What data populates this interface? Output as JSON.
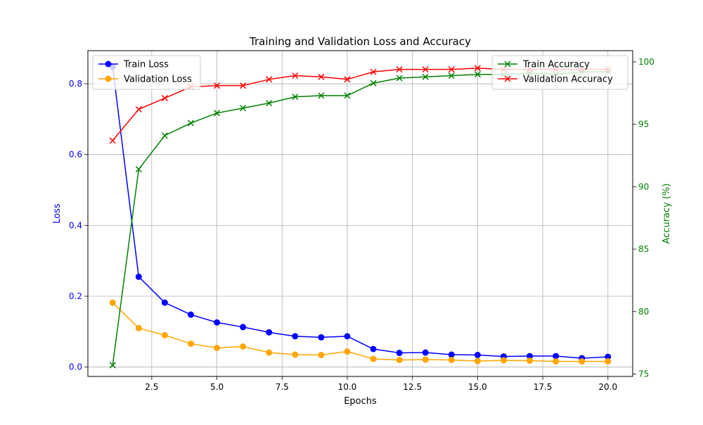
{
  "chart_data": {
    "type": "line",
    "title": "Training and Validation Loss and Accuracy",
    "xlabel": "Epochs",
    "ylabel_left": "Loss",
    "ylabel_right": "Accuracy (%)",
    "xlim": [
      0.05,
      20.95
    ],
    "ylim_left": [
      -0.0265,
      0.8935
    ],
    "ylim_right": [
      74.8,
      100.9
    ],
    "x_ticks": [
      2.5,
      5.0,
      7.5,
      10.0,
      12.5,
      15.0,
      17.5,
      20.0
    ],
    "x_tick_labels": [
      "2.5",
      "5.0",
      "7.5",
      "10.0",
      "12.5",
      "15.0",
      "17.5",
      "20.0"
    ],
    "y_left_ticks": [
      0.0,
      0.2,
      0.4,
      0.6,
      0.8
    ],
    "y_left_tick_labels": [
      "0.0",
      "0.2",
      "0.4",
      "0.6",
      "0.8"
    ],
    "y_right_ticks": [
      75,
      80,
      85,
      90,
      95,
      100
    ],
    "y_right_tick_labels": [
      "75",
      "80",
      "85",
      "90",
      "95",
      "100"
    ],
    "grid": true,
    "left_axis_color": "#0000ff",
    "right_axis_color": "#008000",
    "x": [
      1,
      2,
      3,
      4,
      5,
      6,
      7,
      8,
      9,
      10,
      11,
      12,
      13,
      14,
      15,
      16,
      17,
      18,
      19,
      20
    ],
    "series": [
      {
        "name": "Train Loss",
        "axis": "left",
        "color": "#0000ff",
        "marker": "circle",
        "values": [
          0.848,
          0.255,
          0.182,
          0.148,
          0.126,
          0.113,
          0.098,
          0.087,
          0.084,
          0.087,
          0.051,
          0.04,
          0.041,
          0.035,
          0.034,
          0.03,
          0.031,
          0.031,
          0.025,
          0.029
        ]
      },
      {
        "name": "Validation Loss",
        "axis": "left",
        "color": "#ffa500",
        "marker": "circle",
        "values": [
          0.182,
          0.11,
          0.09,
          0.066,
          0.054,
          0.058,
          0.041,
          0.035,
          0.034,
          0.044,
          0.023,
          0.02,
          0.021,
          0.02,
          0.017,
          0.019,
          0.018,
          0.016,
          0.016,
          0.016
        ]
      },
      {
        "name": "Train Accuracy",
        "axis": "right",
        "color": "#008000",
        "marker": "x",
        "values": [
          75.7,
          91.4,
          94.1,
          95.1,
          95.9,
          96.3,
          96.7,
          97.2,
          97.3,
          97.3,
          98.3,
          98.7,
          98.8,
          98.9,
          99.0,
          99.0,
          99.1,
          99.0,
          99.2,
          99.2
        ]
      },
      {
        "name": "Validation Accuracy",
        "axis": "right",
        "color": "#ff0000",
        "marker": "x",
        "values": [
          93.7,
          96.2,
          97.1,
          98.0,
          98.1,
          98.1,
          98.6,
          98.9,
          98.8,
          98.6,
          99.2,
          99.4,
          99.4,
          99.4,
          99.5,
          99.4,
          99.4,
          99.4,
          99.4,
          99.4
        ]
      }
    ],
    "legends": [
      {
        "placement": "upper-left",
        "entries": [
          "Train Loss",
          "Validation Loss"
        ]
      },
      {
        "placement": "upper-right",
        "entries": [
          "Train Accuracy",
          "Validation Accuracy"
        ]
      }
    ]
  }
}
